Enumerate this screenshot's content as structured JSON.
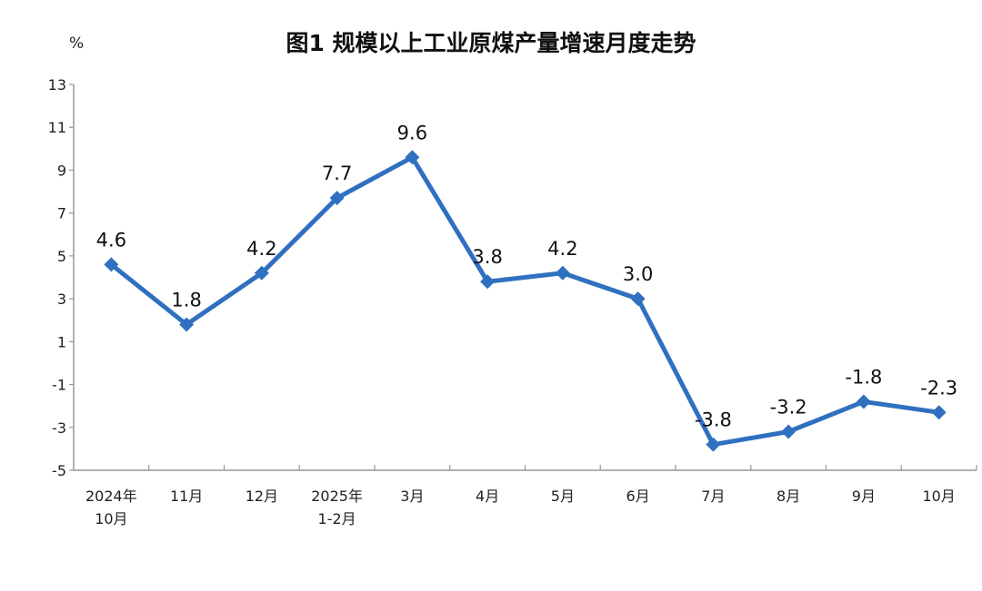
{
  "chart_data": {
    "type": "line",
    "title": "图1  规模以上工业原煤产量增速月度走势",
    "ylabel": "%",
    "xlabel": "",
    "categories": [
      [
        "2024年",
        "10月"
      ],
      [
        "11月"
      ],
      [
        "12月"
      ],
      [
        "2025年",
        "1-2月"
      ],
      [
        "3月"
      ],
      [
        "4月"
      ],
      [
        "5月"
      ],
      [
        "6月"
      ],
      [
        "7月"
      ],
      [
        "8月"
      ],
      [
        "9月"
      ],
      [
        "10月"
      ]
    ],
    "series": [
      {
        "values": [
          4.6,
          1.8,
          4.2,
          7.7,
          9.6,
          3.8,
          4.2,
          3.0,
          -3.8,
          -3.2,
          -1.8,
          -2.3
        ]
      }
    ],
    "data_labels": [
      "4.6",
      "1.8",
      "4.2",
      "7.7",
      "9.6",
      "3.8",
      "4.2",
      "3.0",
      "-3.8",
      "-3.2",
      "-1.8",
      "-2.3"
    ],
    "ylim": [
      -5,
      13
    ],
    "yticks": [
      13,
      11,
      9,
      7,
      5,
      3,
      1,
      -1,
      -3,
      -5
    ],
    "grid": false,
    "marker": "diamond",
    "colors": {
      "line": "#3070c0",
      "axis": "#999999"
    }
  }
}
